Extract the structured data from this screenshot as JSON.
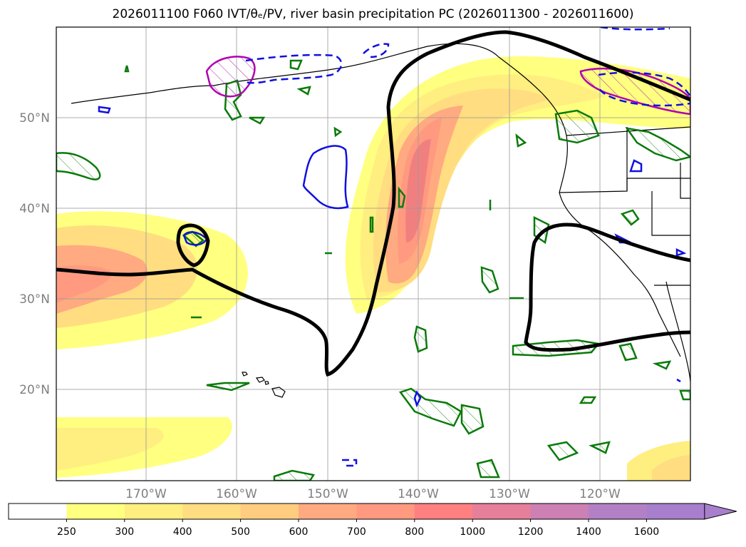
{
  "title": "2026011100 F060 IVT/θₑ/PV, river basin precipitation PC (2026011300 - 2026011600)",
  "map": {
    "lon_labels": [
      "170°W",
      "160°W",
      "150°W",
      "140°W",
      "130°W",
      "120°W"
    ],
    "lat_labels": [
      "50°N",
      "40°N",
      "30°N",
      "20°N"
    ]
  },
  "colorbar": {
    "ticks": [
      "250",
      "300",
      "400",
      "500",
      "600",
      "700",
      "800",
      "1000",
      "1200",
      "1400",
      "1600"
    ],
    "colors": [
      "#ffffff",
      "#ffff80",
      "#ffee80",
      "#ffdd80",
      "#ffcc80",
      "#ffaa80",
      "#ff9980",
      "#ff8080",
      "#e67f99",
      "#cc80b3",
      "#b380c6",
      "#a87fcc"
    ]
  }
}
